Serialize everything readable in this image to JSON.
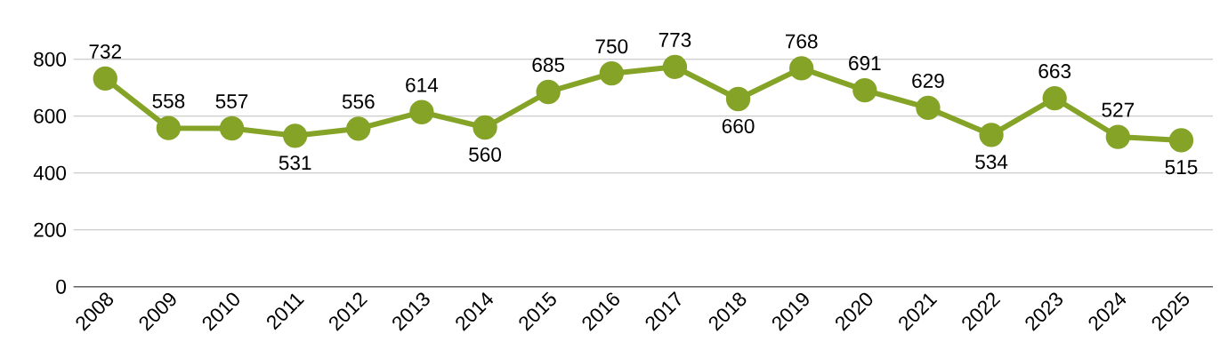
{
  "chart_data": {
    "type": "line",
    "categories": [
      "2008",
      "2009",
      "2010",
      "2011",
      "2012",
      "2013",
      "2014",
      "2015",
      "2016",
      "2017",
      "2018",
      "2019",
      "2020",
      "2021",
      "2022",
      "2023",
      "2024",
      "2025"
    ],
    "series": [
      {
        "color": "#84a327",
        "values": [
          732,
          558,
          557,
          531,
          556,
          614,
          560,
          685,
          750,
          773,
          660,
          768,
          691,
          629,
          534,
          663,
          527,
          515
        ]
      }
    ],
    "ylim": [
      0,
      800
    ],
    "yticks": [
      0,
      200,
      400,
      600,
      800
    ],
    "grid": "y",
    "marker": "circle",
    "line_style": "solid",
    "data_labels": true
  }
}
